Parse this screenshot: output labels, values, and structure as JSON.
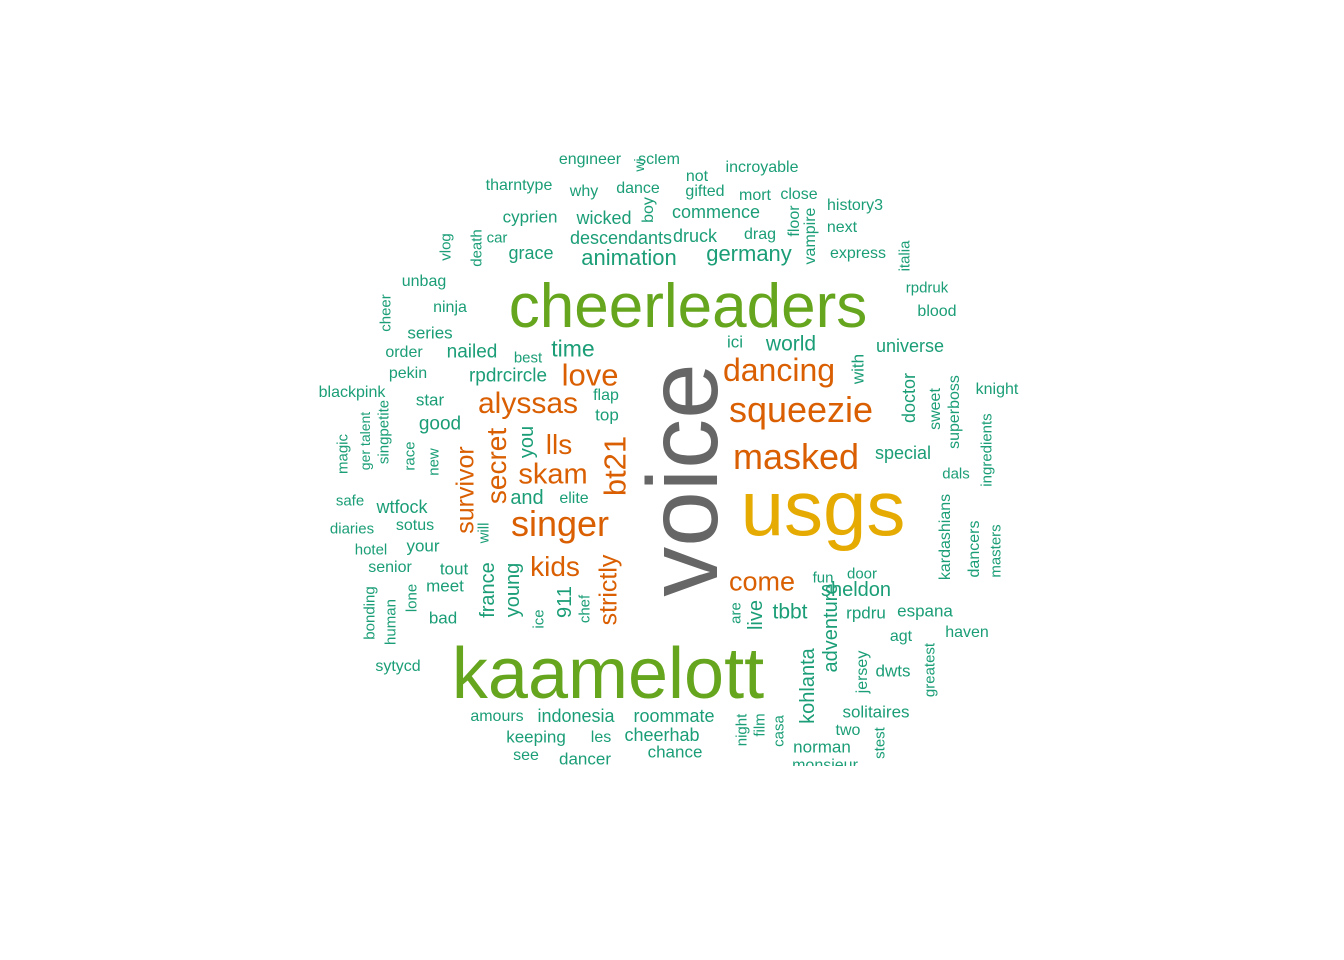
{
  "colors": {
    "gray": "#666666",
    "gold": "#E6AB02",
    "green": "#66A61E",
    "orange": "#D95F02",
    "teal": "#1B9E77"
  },
  "words": [
    {
      "text": "voice",
      "color": "gray",
      "vertical": true
    },
    {
      "text": "usgs",
      "color": "gold"
    },
    {
      "text": "kaamelott",
      "color": "green"
    },
    {
      "text": "cheerleaders",
      "color": "green"
    },
    {
      "text": "squeezie",
      "color": "orange"
    },
    {
      "text": "masked",
      "color": "orange"
    },
    {
      "text": "singer",
      "color": "orange"
    },
    {
      "text": "alyssas",
      "color": "orange"
    },
    {
      "text": "dancing",
      "color": "orange"
    },
    {
      "text": "love",
      "color": "orange"
    },
    {
      "text": "bt21",
      "color": "orange",
      "vertical": true
    },
    {
      "text": "skam",
      "color": "orange"
    },
    {
      "text": "kids",
      "color": "orange"
    },
    {
      "text": "come",
      "color": "orange"
    },
    {
      "text": "lls",
      "color": "orange"
    },
    {
      "text": "secret",
      "color": "orange",
      "vertical": true
    },
    {
      "text": "survivor",
      "color": "orange",
      "vertical": true
    },
    {
      "text": "strictly",
      "color": "orange",
      "vertical": true
    },
    {
      "text": "animation",
      "color": "teal"
    },
    {
      "text": "germany",
      "color": "teal"
    },
    {
      "text": "time",
      "color": "teal"
    },
    {
      "text": "world",
      "color": "teal"
    },
    {
      "text": "tbbt",
      "color": "teal"
    },
    {
      "text": "sheldon",
      "color": "teal"
    },
    {
      "text": "kohlanta",
      "color": "teal",
      "vertical": true
    },
    {
      "text": "adventure",
      "color": "teal",
      "vertical": true
    },
    {
      "text": "france",
      "color": "teal",
      "vertical": true
    },
    {
      "text": "young",
      "color": "teal",
      "vertical": true
    },
    {
      "text": "911",
      "color": "teal",
      "vertical": true
    },
    {
      "text": "live",
      "color": "teal",
      "vertical": true
    },
    {
      "text": "you",
      "color": "teal",
      "vertical": true
    },
    {
      "text": "and",
      "color": "teal"
    },
    {
      "text": "rpdrcircle",
      "color": "teal"
    },
    {
      "text": "nailed",
      "color": "teal"
    },
    {
      "text": "good",
      "color": "teal"
    },
    {
      "text": "wtfock",
      "color": "teal"
    },
    {
      "text": "grace",
      "color": "teal"
    },
    {
      "text": "descendants",
      "color": "teal"
    },
    {
      "text": "druck",
      "color": "teal"
    },
    {
      "text": "commence",
      "color": "teal"
    },
    {
      "text": "wicked",
      "color": "teal"
    },
    {
      "text": "cyprien",
      "color": "teal"
    },
    {
      "text": "special",
      "color": "teal"
    },
    {
      "text": "universe",
      "color": "teal"
    },
    {
      "text": "doctor",
      "color": "teal",
      "vertical": true
    },
    {
      "text": "with",
      "color": "teal",
      "vertical": true
    },
    {
      "text": "indonesia",
      "color": "teal"
    },
    {
      "text": "roommate",
      "color": "teal"
    },
    {
      "text": "cheerhab",
      "color": "teal"
    },
    {
      "text": "amours",
      "color": "teal"
    },
    {
      "text": "keeping",
      "color": "teal"
    },
    {
      "text": "les",
      "color": "teal"
    },
    {
      "text": "dancer",
      "color": "teal"
    },
    {
      "text": "chance",
      "color": "teal"
    },
    {
      "text": "see",
      "color": "teal"
    },
    {
      "text": "norman",
      "color": "teal"
    },
    {
      "text": "solitaires",
      "color": "teal"
    },
    {
      "text": "two",
      "color": "teal"
    },
    {
      "text": "espana",
      "color": "teal"
    },
    {
      "text": "rpdru",
      "color": "teal"
    },
    {
      "text": "agt",
      "color": "teal"
    },
    {
      "text": "dwts",
      "color": "teal"
    },
    {
      "text": "jersey",
      "color": "teal",
      "vertical": true
    },
    {
      "text": "fun",
      "color": "teal"
    },
    {
      "text": "door",
      "color": "teal"
    },
    {
      "text": "haven",
      "color": "teal"
    },
    {
      "text": "greatest",
      "color": "teal",
      "vertical": true
    },
    {
      "text": "kardashians",
      "color": "teal",
      "vertical": true
    },
    {
      "text": "dancers",
      "color": "teal",
      "vertical": true
    },
    {
      "text": "masters",
      "color": "teal",
      "vertical": true
    },
    {
      "text": "dals",
      "color": "teal"
    },
    {
      "text": "superboss",
      "color": "teal",
      "vertical": true
    },
    {
      "text": "sweet",
      "color": "teal",
      "vertical": true
    },
    {
      "text": "ingredients",
      "color": "teal",
      "vertical": true
    },
    {
      "text": "knight",
      "color": "teal"
    },
    {
      "text": "blood",
      "color": "teal"
    },
    {
      "text": "rpdruk",
      "color": "teal"
    },
    {
      "text": "italia",
      "color": "teal",
      "vertical": true
    },
    {
      "text": "express",
      "color": "teal"
    },
    {
      "text": "next",
      "color": "teal"
    },
    {
      "text": "history3",
      "color": "teal"
    },
    {
      "text": "vampire",
      "color": "teal",
      "vertical": true
    },
    {
      "text": "floor",
      "color": "teal",
      "vertical": true
    },
    {
      "text": "close",
      "color": "teal"
    },
    {
      "text": "mort",
      "color": "teal"
    },
    {
      "text": "incroyable",
      "color": "teal"
    },
    {
      "text": "gifted",
      "color": "teal"
    },
    {
      "text": "not",
      "color": "teal"
    },
    {
      "text": "dance",
      "color": "teal"
    },
    {
      "text": "boy",
      "color": "teal",
      "vertical": true
    },
    {
      "text": "why",
      "color": "teal"
    },
    {
      "text": "tharntype",
      "color": "teal"
    },
    {
      "text": "engineer",
      "color": "teal"
    },
    {
      "text": "sclem",
      "color": "teal"
    },
    {
      "text": "wi",
      "color": "teal",
      "vertical": true
    },
    {
      "text": "drag",
      "color": "teal"
    },
    {
      "text": "car",
      "color": "teal"
    },
    {
      "text": "death",
      "color": "teal",
      "vertical": true
    },
    {
      "text": "vlog",
      "color": "teal",
      "vertical": true
    },
    {
      "text": "unbag",
      "color": "teal"
    },
    {
      "text": "ninja",
      "color": "teal"
    },
    {
      "text": "cheer",
      "color": "teal",
      "vertical": true
    },
    {
      "text": "series",
      "color": "teal"
    },
    {
      "text": "order",
      "color": "teal"
    },
    {
      "text": "best",
      "color": "teal"
    },
    {
      "text": "pekin",
      "color": "teal"
    },
    {
      "text": "blackpink",
      "color": "teal"
    },
    {
      "text": "star",
      "color": "teal"
    },
    {
      "text": "flap",
      "color": "teal"
    },
    {
      "text": "top",
      "color": "teal"
    },
    {
      "text": "ici",
      "color": "teal"
    },
    {
      "text": "elite",
      "color": "teal"
    },
    {
      "text": "will",
      "color": "teal",
      "vertical": true
    },
    {
      "text": "sotus",
      "color": "teal"
    },
    {
      "text": "your",
      "color": "teal"
    },
    {
      "text": "tout",
      "color": "teal"
    },
    {
      "text": "meet",
      "color": "teal"
    },
    {
      "text": "bad",
      "color": "teal"
    },
    {
      "text": "senior",
      "color": "teal"
    },
    {
      "text": "hotel",
      "color": "teal"
    },
    {
      "text": "diaries",
      "color": "teal"
    },
    {
      "text": "safe",
      "color": "teal"
    },
    {
      "text": "magic",
      "color": "teal",
      "vertical": true
    },
    {
      "text": "ger talent",
      "color": "teal",
      "vertical": true
    },
    {
      "text": "singpetite",
      "color": "teal",
      "vertical": true
    },
    {
      "text": "race",
      "color": "teal",
      "vertical": true
    },
    {
      "text": "new",
      "color": "teal",
      "vertical": true
    },
    {
      "text": "bonding",
      "color": "teal",
      "vertical": true
    },
    {
      "text": "human",
      "color": "teal",
      "vertical": true
    },
    {
      "text": "lone",
      "color": "teal",
      "vertical": true
    },
    {
      "text": "sytycd",
      "color": "teal"
    },
    {
      "text": "chef",
      "color": "teal",
      "vertical": true
    },
    {
      "text": "ice",
      "color": "teal",
      "vertical": true
    },
    {
      "text": "are",
      "color": "teal",
      "vertical": true
    },
    {
      "text": "night",
      "color": "teal",
      "vertical": true
    },
    {
      "text": "film",
      "color": "teal",
      "vertical": true
    },
    {
      "text": "casa",
      "color": "teal",
      "vertical": true
    },
    {
      "text": "stest",
      "color": "teal",
      "vertical": true
    },
    {
      "text": "monsieur",
      "color": "teal"
    }
  ]
}
